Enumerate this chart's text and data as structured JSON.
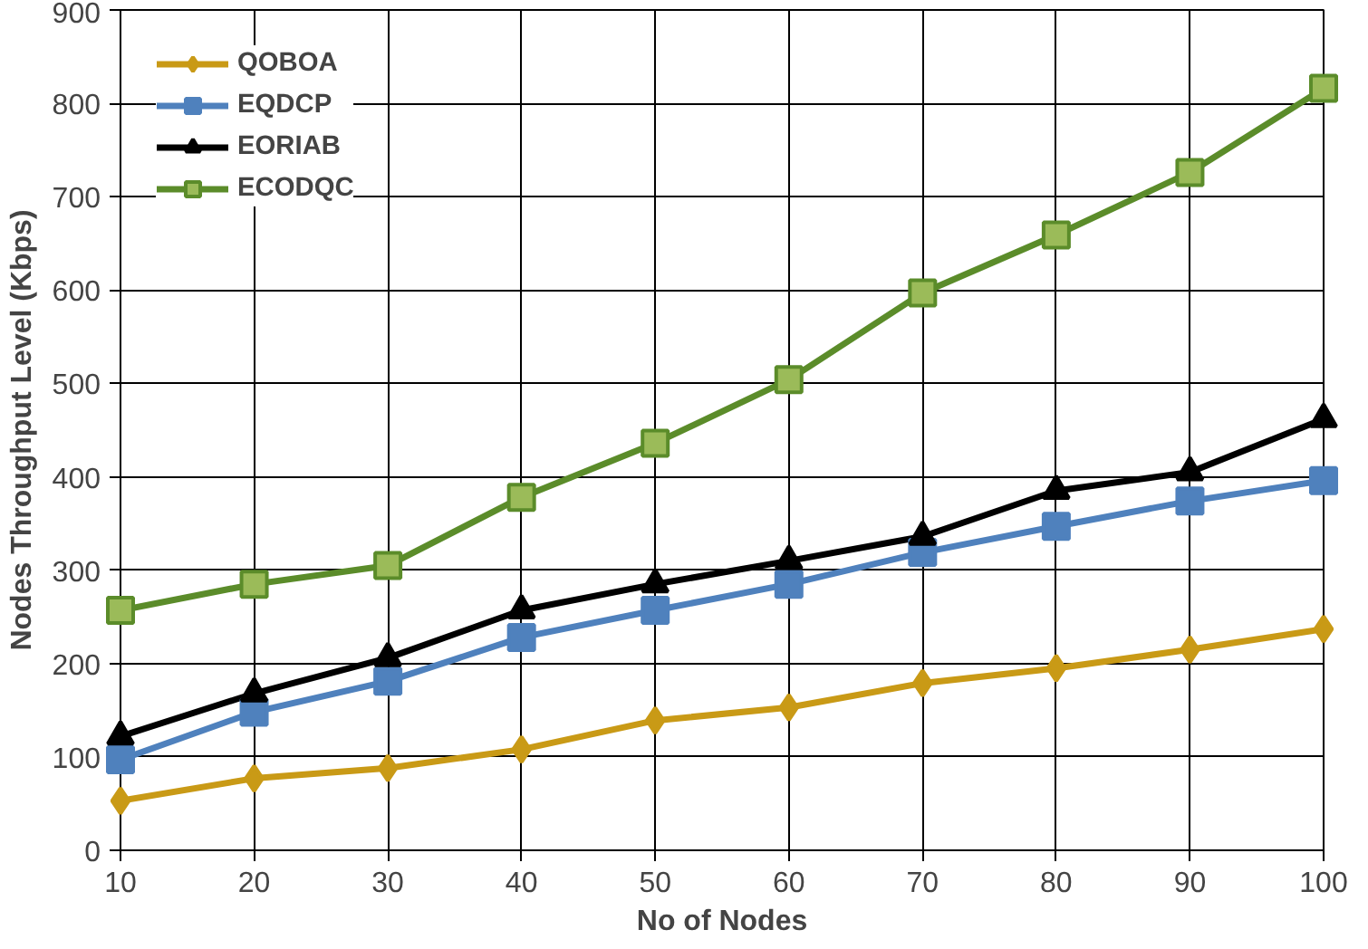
{
  "chart_data": {
    "type": "line",
    "xlabel": "No of Nodes",
    "ylabel": "Nodes Throughput Level (Kbps)",
    "x": [
      10,
      20,
      30,
      40,
      50,
      60,
      70,
      80,
      90,
      100
    ],
    "xlim": [
      10,
      100
    ],
    "xticks": [
      10,
      20,
      30,
      40,
      50,
      60,
      70,
      80,
      90,
      100
    ],
    "ylim": [
      0,
      900
    ],
    "yticks": [
      0,
      100,
      200,
      300,
      400,
      500,
      600,
      700,
      800,
      900
    ],
    "grid": true,
    "legend": "top left",
    "line_style": "solid",
    "series": [
      {
        "name": "QOBOA",
        "color": "#c99a16",
        "marker": "diamond",
        "values": [
          53,
          77,
          88,
          108,
          139,
          153,
          179,
          195,
          215,
          237
        ]
      },
      {
        "name": "EQDCP",
        "color": "#4f81bd",
        "marker": "square",
        "values": [
          97,
          148,
          181,
          228,
          257,
          285,
          319,
          347,
          374,
          396
        ]
      },
      {
        "name": "EORIAB",
        "color": "#000000",
        "marker": "triangle",
        "values": [
          122,
          168,
          206,
          257,
          285,
          310,
          336,
          385,
          405,
          462
        ]
      },
      {
        "name": "ECODQC",
        "color": "#5b8c2a",
        "marker": "square",
        "values": [
          257,
          285,
          305,
          378,
          436,
          504,
          597,
          659,
          726,
          816
        ]
      }
    ]
  }
}
